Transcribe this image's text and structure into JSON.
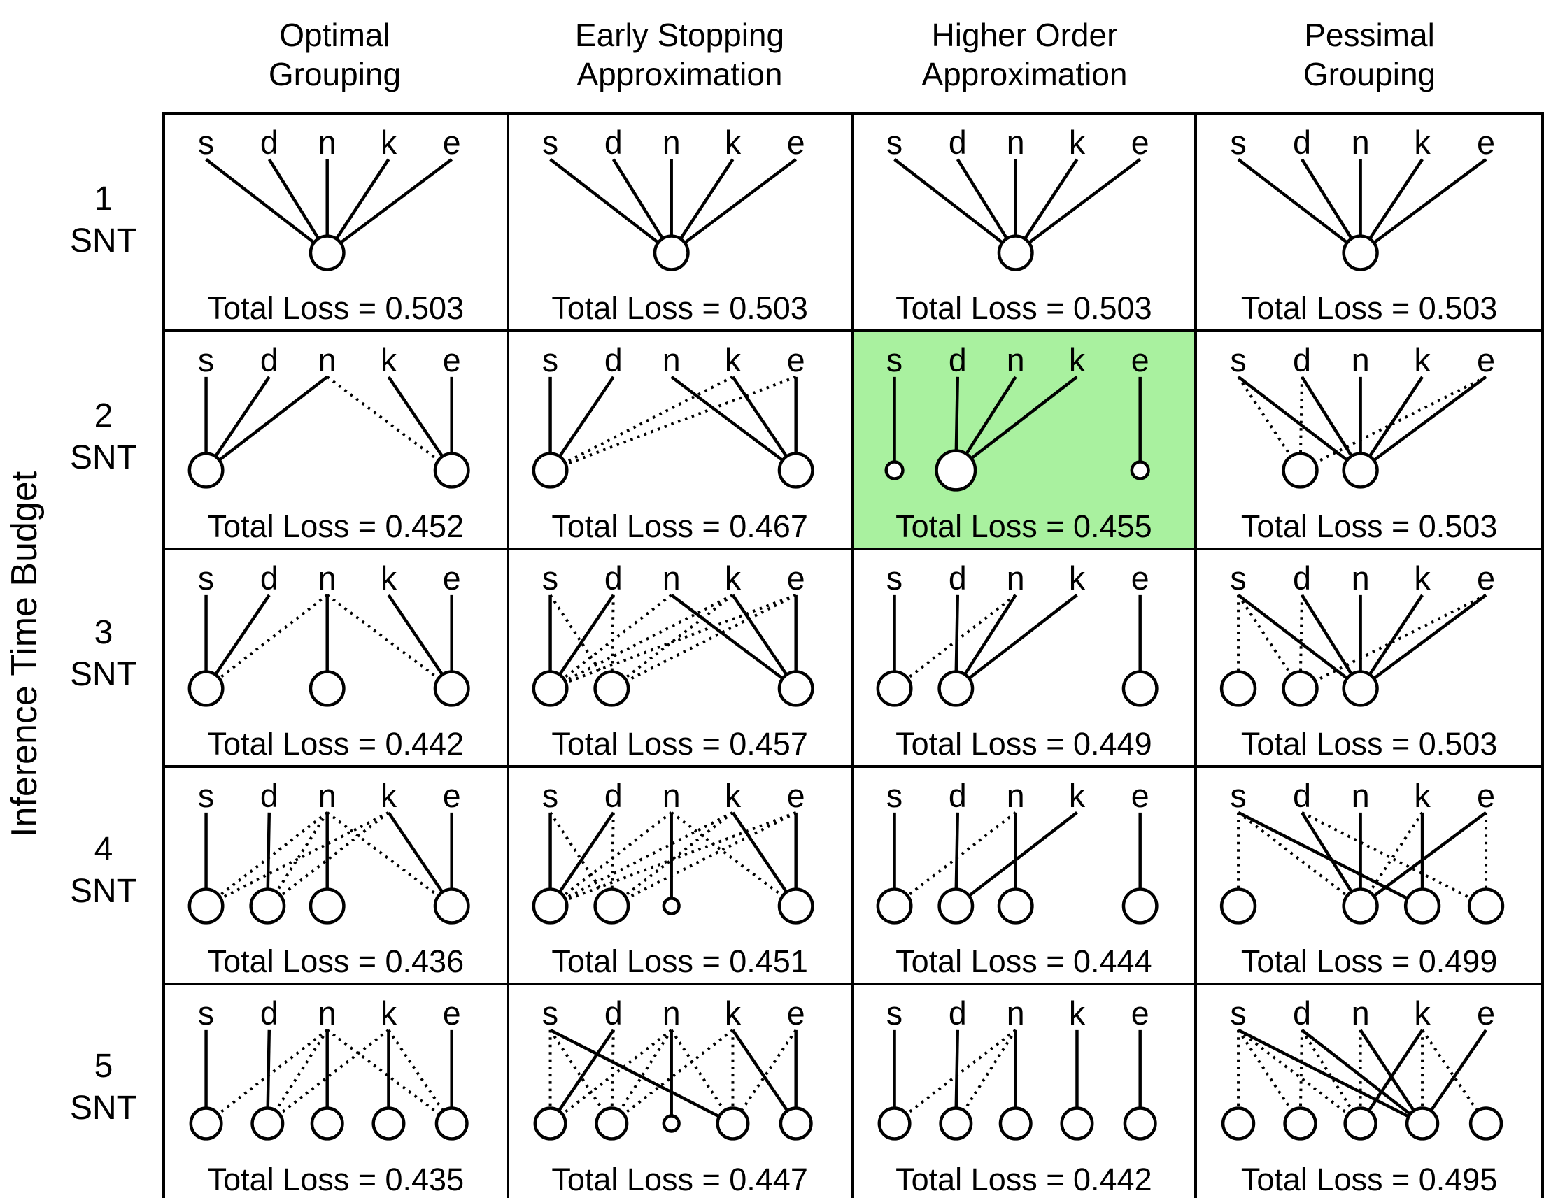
{
  "y_axis_label": "Inference Time Budget",
  "columns": [
    "Optimal\nGrouping",
    "Early Stopping\nApproximation",
    "Higher Order\nApproximation",
    "Pessimal\nGrouping"
  ],
  "row_labels": [
    "1\nSNT",
    "2\nSNT",
    "3\nSNT",
    "4\nSNT",
    "5\nSNT"
  ],
  "letters": [
    "s",
    "d",
    "n",
    "k",
    "e"
  ],
  "letter_x": [
    0.12,
    0.305,
    0.475,
    0.655,
    0.84
  ],
  "highlight_color": "#a9f19f",
  "line_color": "#000000",
  "cells": [
    {
      "row": "1 SNT",
      "col": "Optimal Grouping",
      "loss_text": "Total Loss = 0.503",
      "highlight": false,
      "circles": [
        [
          0.475,
          24
        ]
      ],
      "edges": [
        [
          0,
          0,
          "s"
        ],
        [
          1,
          0,
          "s"
        ],
        [
          2,
          0,
          "s"
        ],
        [
          3,
          0,
          "s"
        ],
        [
          4,
          0,
          "s"
        ]
      ]
    },
    {
      "row": "1 SNT",
      "col": "Early Stopping Approximation",
      "loss_text": "Total Loss = 0.503",
      "highlight": false,
      "circles": [
        [
          0.475,
          24
        ]
      ],
      "edges": [
        [
          0,
          0,
          "s"
        ],
        [
          1,
          0,
          "s"
        ],
        [
          2,
          0,
          "s"
        ],
        [
          3,
          0,
          "s"
        ],
        [
          4,
          0,
          "s"
        ]
      ]
    },
    {
      "row": "1 SNT",
      "col": "Higher Order Approximation",
      "loss_text": "Total Loss = 0.503",
      "highlight": false,
      "circles": [
        [
          0.475,
          24
        ]
      ],
      "edges": [
        [
          0,
          0,
          "s"
        ],
        [
          1,
          0,
          "s"
        ],
        [
          2,
          0,
          "s"
        ],
        [
          3,
          0,
          "s"
        ],
        [
          4,
          0,
          "s"
        ]
      ]
    },
    {
      "row": "1 SNT",
      "col": "Pessimal Grouping",
      "loss_text": "Total Loss = 0.503",
      "highlight": false,
      "circles": [
        [
          0.475,
          24
        ]
      ],
      "edges": [
        [
          0,
          0,
          "s"
        ],
        [
          1,
          0,
          "s"
        ],
        [
          2,
          0,
          "s"
        ],
        [
          3,
          0,
          "s"
        ],
        [
          4,
          0,
          "s"
        ]
      ]
    },
    {
      "row": "2 SNT",
      "col": "Optimal Grouping",
      "loss_text": "Total Loss = 0.452",
      "highlight": false,
      "circles": [
        [
          0.12,
          24
        ],
        [
          0.84,
          24
        ]
      ],
      "edges": [
        [
          0,
          0,
          "s"
        ],
        [
          1,
          0,
          "s"
        ],
        [
          2,
          0,
          "s"
        ],
        [
          2,
          1,
          "d"
        ],
        [
          3,
          1,
          "s"
        ],
        [
          4,
          1,
          "s"
        ]
      ]
    },
    {
      "row": "2 SNT",
      "col": "Early Stopping Approximation",
      "loss_text": "Total Loss = 0.467",
      "highlight": false,
      "circles": [
        [
          0.12,
          24
        ],
        [
          0.84,
          24
        ]
      ],
      "edges": [
        [
          0,
          0,
          "s"
        ],
        [
          1,
          0,
          "s"
        ],
        [
          2,
          1,
          "s"
        ],
        [
          3,
          1,
          "s"
        ],
        [
          4,
          1,
          "s"
        ],
        [
          3,
          0,
          "d"
        ],
        [
          4,
          0,
          "d"
        ]
      ]
    },
    {
      "row": "2 SNT",
      "col": "Higher Order Approximation",
      "loss_text": "Total Loss = 0.455",
      "highlight": true,
      "circles": [
        [
          0.12,
          12
        ],
        [
          0.3,
          28
        ],
        [
          0.84,
          12
        ]
      ],
      "edges": [
        [
          0,
          0,
          "s"
        ],
        [
          1,
          1,
          "s"
        ],
        [
          2,
          1,
          "s"
        ],
        [
          3,
          1,
          "s"
        ],
        [
          4,
          2,
          "s"
        ]
      ]
    },
    {
      "row": "2 SNT",
      "col": "Pessimal Grouping",
      "loss_text": "Total Loss = 0.503",
      "highlight": false,
      "circles": [
        [
          0.3,
          24
        ],
        [
          0.475,
          24
        ]
      ],
      "edges": [
        [
          0,
          1,
          "s"
        ],
        [
          1,
          1,
          "s"
        ],
        [
          2,
          1,
          "s"
        ],
        [
          3,
          1,
          "s"
        ],
        [
          4,
          1,
          "s"
        ],
        [
          0,
          0,
          "d"
        ],
        [
          1,
          0,
          "d"
        ],
        [
          4,
          0,
          "d"
        ]
      ]
    },
    {
      "row": "3 SNT",
      "col": "Optimal Grouping",
      "loss_text": "Total Loss = 0.442",
      "highlight": false,
      "circles": [
        [
          0.12,
          24
        ],
        [
          0.475,
          24
        ],
        [
          0.84,
          24
        ]
      ],
      "edges": [
        [
          0,
          0,
          "s"
        ],
        [
          1,
          0,
          "s"
        ],
        [
          2,
          1,
          "s"
        ],
        [
          3,
          2,
          "s"
        ],
        [
          4,
          2,
          "s"
        ],
        [
          2,
          0,
          "d"
        ],
        [
          2,
          2,
          "d"
        ]
      ]
    },
    {
      "row": "3 SNT",
      "col": "Early Stopping Approximation",
      "loss_text": "Total Loss = 0.457",
      "highlight": false,
      "circles": [
        [
          0.12,
          24
        ],
        [
          0.3,
          24
        ],
        [
          0.84,
          24
        ]
      ],
      "edges": [
        [
          0,
          0,
          "s"
        ],
        [
          1,
          0,
          "s"
        ],
        [
          2,
          2,
          "s"
        ],
        [
          3,
          2,
          "s"
        ],
        [
          4,
          2,
          "s"
        ],
        [
          0,
          1,
          "d"
        ],
        [
          1,
          1,
          "d"
        ],
        [
          2,
          0,
          "d"
        ],
        [
          3,
          0,
          "d"
        ],
        [
          3,
          1,
          "d"
        ],
        [
          4,
          0,
          "d"
        ],
        [
          4,
          1,
          "d"
        ]
      ]
    },
    {
      "row": "3 SNT",
      "col": "Higher Order Approximation",
      "loss_text": "Total Loss = 0.449",
      "highlight": false,
      "circles": [
        [
          0.12,
          24
        ],
        [
          0.3,
          24
        ],
        [
          0.84,
          24
        ]
      ],
      "edges": [
        [
          0,
          0,
          "s"
        ],
        [
          1,
          1,
          "s"
        ],
        [
          2,
          1,
          "s"
        ],
        [
          3,
          1,
          "s"
        ],
        [
          4,
          2,
          "s"
        ],
        [
          2,
          0,
          "d"
        ]
      ]
    },
    {
      "row": "3 SNT",
      "col": "Pessimal Grouping",
      "loss_text": "Total Loss = 0.503",
      "highlight": false,
      "circles": [
        [
          0.12,
          24
        ],
        [
          0.3,
          24
        ],
        [
          0.475,
          24
        ]
      ],
      "edges": [
        [
          0,
          2,
          "s"
        ],
        [
          1,
          2,
          "s"
        ],
        [
          2,
          2,
          "s"
        ],
        [
          3,
          2,
          "s"
        ],
        [
          4,
          2,
          "s"
        ],
        [
          0,
          0,
          "d"
        ],
        [
          0,
          1,
          "d"
        ],
        [
          1,
          1,
          "d"
        ],
        [
          4,
          1,
          "d"
        ]
      ]
    },
    {
      "row": "4 SNT",
      "col": "Optimal Grouping",
      "loss_text": "Total Loss = 0.436",
      "highlight": false,
      "circles": [
        [
          0.12,
          24
        ],
        [
          0.3,
          24
        ],
        [
          0.475,
          24
        ],
        [
          0.84,
          24
        ]
      ],
      "edges": [
        [
          0,
          0,
          "s"
        ],
        [
          1,
          1,
          "s"
        ],
        [
          2,
          2,
          "s"
        ],
        [
          3,
          3,
          "s"
        ],
        [
          4,
          3,
          "s"
        ],
        [
          2,
          0,
          "d"
        ],
        [
          2,
          1,
          "d"
        ],
        [
          2,
          3,
          "d"
        ],
        [
          3,
          0,
          "d"
        ],
        [
          3,
          1,
          "d"
        ]
      ]
    },
    {
      "row": "4 SNT",
      "col": "Early Stopping Approximation",
      "loss_text": "Total Loss = 0.451",
      "highlight": false,
      "circles": [
        [
          0.12,
          24
        ],
        [
          0.3,
          24
        ],
        [
          0.475,
          11
        ],
        [
          0.84,
          24
        ]
      ],
      "edges": [
        [
          0,
          0,
          "s"
        ],
        [
          1,
          0,
          "s"
        ],
        [
          2,
          2,
          "s"
        ],
        [
          3,
          3,
          "s"
        ],
        [
          4,
          3,
          "s"
        ],
        [
          0,
          1,
          "d"
        ],
        [
          1,
          1,
          "d"
        ],
        [
          2,
          0,
          "d"
        ],
        [
          2,
          3,
          "d"
        ],
        [
          3,
          0,
          "d"
        ],
        [
          3,
          1,
          "d"
        ],
        [
          4,
          0,
          "d"
        ],
        [
          4,
          1,
          "d"
        ]
      ]
    },
    {
      "row": "4 SNT",
      "col": "Higher Order Approximation",
      "loss_text": "Total Loss = 0.444",
      "highlight": false,
      "circles": [
        [
          0.12,
          24
        ],
        [
          0.3,
          24
        ],
        [
          0.475,
          24
        ],
        [
          0.84,
          24
        ]
      ],
      "edges": [
        [
          0,
          0,
          "s"
        ],
        [
          1,
          1,
          "s"
        ],
        [
          2,
          2,
          "s"
        ],
        [
          3,
          1,
          "s"
        ],
        [
          4,
          3,
          "s"
        ],
        [
          2,
          0,
          "d"
        ]
      ]
    },
    {
      "row": "4 SNT",
      "col": "Pessimal Grouping",
      "loss_text": "Total Loss = 0.499",
      "highlight": false,
      "circles": [
        [
          0.12,
          24
        ],
        [
          0.475,
          24
        ],
        [
          0.655,
          24
        ],
        [
          0.84,
          24
        ]
      ],
      "edges": [
        [
          0,
          2,
          "s"
        ],
        [
          1,
          1,
          "s"
        ],
        [
          2,
          1,
          "s"
        ],
        [
          3,
          2,
          "s"
        ],
        [
          4,
          1,
          "s"
        ],
        [
          0,
          0,
          "d"
        ],
        [
          0,
          1,
          "d"
        ],
        [
          1,
          3,
          "d"
        ],
        [
          3,
          1,
          "d"
        ],
        [
          4,
          3,
          "d"
        ]
      ]
    },
    {
      "row": "5 SNT",
      "col": "Optimal Grouping",
      "loss_text": "Total Loss = 0.435",
      "highlight": false,
      "circles": [
        [
          0.12,
          22
        ],
        [
          0.3,
          22
        ],
        [
          0.475,
          22
        ],
        [
          0.655,
          22
        ],
        [
          0.84,
          22
        ]
      ],
      "edges": [
        [
          0,
          0,
          "s"
        ],
        [
          1,
          1,
          "s"
        ],
        [
          2,
          2,
          "s"
        ],
        [
          3,
          3,
          "s"
        ],
        [
          4,
          4,
          "s"
        ],
        [
          2,
          0,
          "d"
        ],
        [
          2,
          1,
          "d"
        ],
        [
          2,
          4,
          "d"
        ],
        [
          3,
          1,
          "d"
        ],
        [
          3,
          4,
          "d"
        ]
      ]
    },
    {
      "row": "5 SNT",
      "col": "Early Stopping Approximation",
      "loss_text": "Total Loss = 0.447",
      "highlight": false,
      "circles": [
        [
          0.12,
          22
        ],
        [
          0.3,
          22
        ],
        [
          0.475,
          11
        ],
        [
          0.655,
          22
        ],
        [
          0.84,
          22
        ]
      ],
      "edges": [
        [
          0,
          3,
          "s"
        ],
        [
          1,
          0,
          "s"
        ],
        [
          2,
          2,
          "s"
        ],
        [
          3,
          4,
          "s"
        ],
        [
          4,
          4,
          "s"
        ],
        [
          0,
          0,
          "d"
        ],
        [
          0,
          1,
          "d"
        ],
        [
          1,
          1,
          "d"
        ],
        [
          2,
          0,
          "d"
        ],
        [
          2,
          1,
          "d"
        ],
        [
          2,
          3,
          "d"
        ],
        [
          3,
          1,
          "d"
        ],
        [
          3,
          3,
          "d"
        ],
        [
          4,
          3,
          "d"
        ]
      ]
    },
    {
      "row": "5 SNT",
      "col": "Higher Order Approximation",
      "loss_text": "Total Loss = 0.442",
      "highlight": false,
      "circles": [
        [
          0.12,
          22
        ],
        [
          0.3,
          22
        ],
        [
          0.475,
          22
        ],
        [
          0.655,
          22
        ],
        [
          0.84,
          22
        ]
      ],
      "edges": [
        [
          0,
          0,
          "s"
        ],
        [
          1,
          1,
          "s"
        ],
        [
          2,
          2,
          "s"
        ],
        [
          3,
          3,
          "s"
        ],
        [
          4,
          4,
          "s"
        ],
        [
          2,
          0,
          "d"
        ],
        [
          2,
          1,
          "d"
        ]
      ]
    },
    {
      "row": "5 SNT",
      "col": "Pessimal Grouping",
      "loss_text": "Total Loss = 0.495",
      "highlight": false,
      "circles": [
        [
          0.12,
          22
        ],
        [
          0.3,
          22
        ],
        [
          0.475,
          22
        ],
        [
          0.655,
          22
        ],
        [
          0.84,
          22
        ]
      ],
      "edges": [
        [
          0,
          3,
          "s"
        ],
        [
          1,
          3,
          "s"
        ],
        [
          2,
          3,
          "s"
        ],
        [
          3,
          2,
          "s"
        ],
        [
          4,
          3,
          "s"
        ],
        [
          0,
          0,
          "d"
        ],
        [
          0,
          1,
          "d"
        ],
        [
          0,
          2,
          "d"
        ],
        [
          1,
          1,
          "d"
        ],
        [
          1,
          2,
          "d"
        ],
        [
          2,
          2,
          "d"
        ],
        [
          3,
          3,
          "d"
        ],
        [
          3,
          4,
          "d"
        ]
      ]
    }
  ]
}
